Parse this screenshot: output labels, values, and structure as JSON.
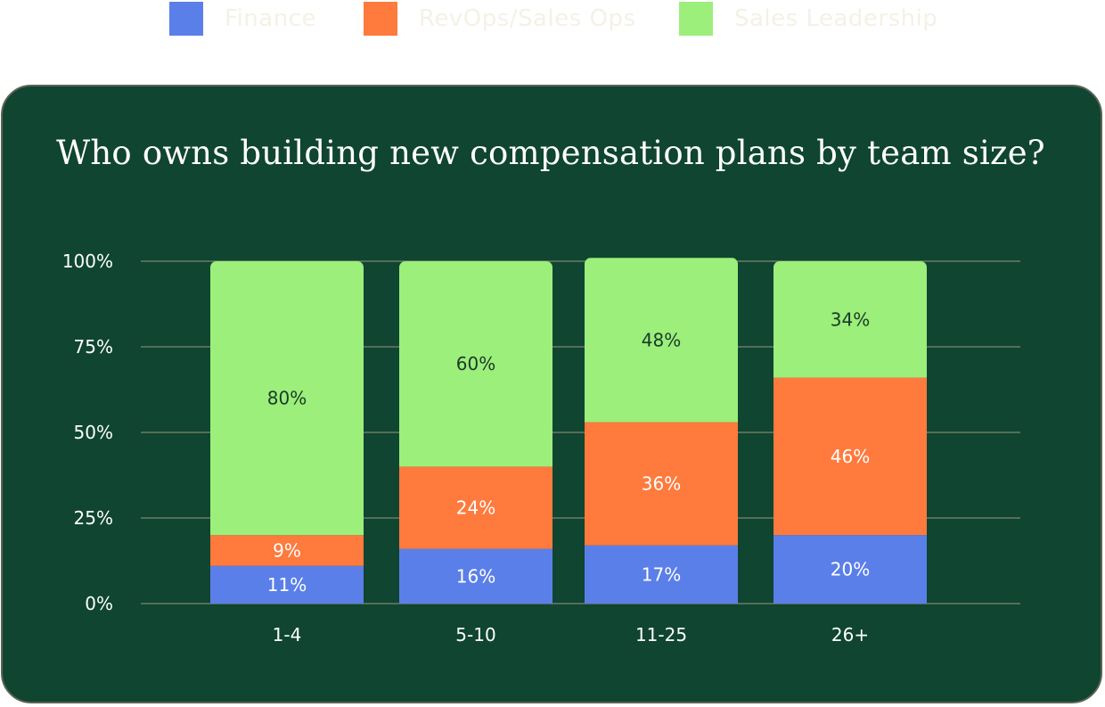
{
  "legend": [
    {
      "label": "Finance",
      "color": "#5b7fe8"
    },
    {
      "label": "RevOps/Sales Ops",
      "color": "#ff7a3d"
    },
    {
      "label": "Sales Leadership",
      "color": "#9bef7a"
    }
  ],
  "chart_data": {
    "type": "bar",
    "stacked": true,
    "title": "Who owns building new compensation plans by team size?",
    "xlabel": "",
    "ylabel": "",
    "ylim": [
      0,
      100
    ],
    "yticks": [
      "0%",
      "25%",
      "50%",
      "75%",
      "100%"
    ],
    "ytick_values": [
      0,
      25,
      50,
      75,
      100
    ],
    "grid": true,
    "legend_position": "top",
    "categories": [
      "1-4",
      "5-10",
      "11-25",
      "26+"
    ],
    "series": [
      {
        "name": "Finance",
        "color": "#5b7fe8",
        "label_color": "#ffffff",
        "values": [
          11,
          16,
          17,
          20
        ],
        "labels": [
          "11%",
          "16%",
          "17%",
          "20%"
        ]
      },
      {
        "name": "RevOps/Sales Ops",
        "color": "#ff7a3d",
        "label_color": "#ffffff",
        "values": [
          9,
          24,
          36,
          46
        ],
        "labels": [
          "9%",
          "24%",
          "36%",
          "46%"
        ]
      },
      {
        "name": "Sales Leadership",
        "color": "#9bef7a",
        "label_color": "#1b3a2a",
        "values": [
          80,
          60,
          48,
          34
        ],
        "labels": [
          "80%",
          "60%",
          "48%",
          "34%"
        ]
      }
    ]
  }
}
